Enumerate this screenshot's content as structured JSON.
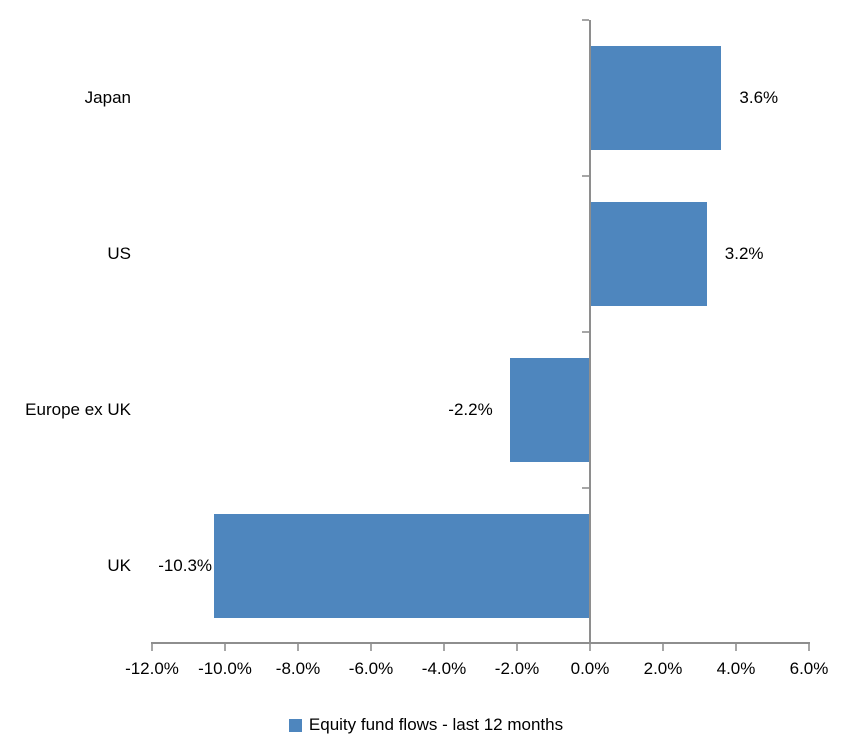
{
  "chart_data": {
    "type": "bar",
    "orientation": "horizontal",
    "title": "",
    "xlabel": "",
    "ylabel": "",
    "categories": [
      "Japan",
      "US",
      "Europe ex UK",
      "UK"
    ],
    "values": [
      3.6,
      3.2,
      -2.2,
      -10.3
    ],
    "value_labels": [
      "3.6%",
      "3.2%",
      "-2.2%",
      "-10.3%"
    ],
    "series_name": "Equity fund flows - last 12 months",
    "xlim": [
      -12,
      6
    ],
    "x_tick_values": [
      -12,
      -10,
      -8,
      -6,
      -4,
      -2,
      0,
      2,
      4,
      6
    ],
    "x_tick_labels": [
      "-12.0%",
      "-10.0%",
      "-8.0%",
      "-6.0%",
      "-4.0%",
      "-2.0%",
      "0.0%",
      "2.0%",
      "4.0%",
      "6.0%"
    ],
    "grid": false,
    "legend_position": "bottom",
    "bar_color": "#4E86BE",
    "axis_line_color": "#8E8E8E",
    "tick_color": "#A6A6A6",
    "text_color": "#000000"
  }
}
